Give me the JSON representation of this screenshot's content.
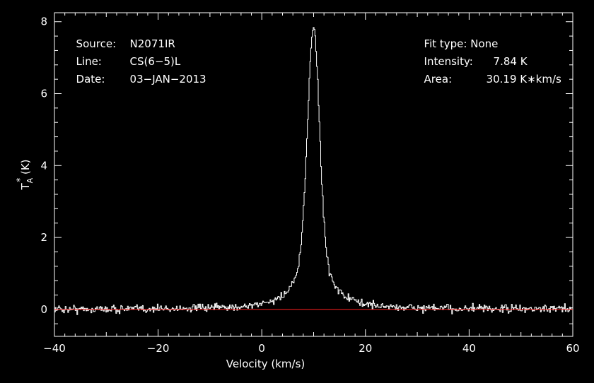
{
  "annotations": {
    "source_label": "Source:",
    "source_value": "N2071IR",
    "line_label": "Line:",
    "line_value": "CS(6−5)L",
    "date_label": "Date:",
    "date_value": "03−JAN−2013",
    "fit_label": "Fit type:",
    "fit_value": "None",
    "intensity_label": "Intensity:",
    "intensity_value": "7.84 K",
    "area_label": "Area:",
    "area_value": "30.19 K∗km/s"
  },
  "chart_data": {
    "type": "line",
    "xlabel": "Velocity (km/s)",
    "ylabel": "T",
    "ylabel_sub": "A",
    "ylabel_sup": "*",
    "ylabel_unit": "(K)",
    "xlim": [
      -40,
      60
    ],
    "ylim": [
      -0.75,
      8.25
    ],
    "x_ticks": [
      -40,
      -20,
      0,
      20,
      40,
      60
    ],
    "x_tick_labels": [
      "−40",
      "−20",
      "0",
      "20",
      "40",
      "60"
    ],
    "y_ticks": [
      0,
      2,
      4,
      6,
      8
    ],
    "y_tick_labels": [
      "0",
      "2",
      "4",
      "6",
      "8"
    ],
    "baseline": 0,
    "series": [
      {
        "style": "histogram",
        "color": "#ffffff",
        "line_profile": {
          "peak_velocity": 9.9,
          "peak_intensity": 7.84,
          "core_halfwidth": 1.1,
          "wing_amplitude": 2.2,
          "wing_halfwidth": 3.5,
          "noise_rms": 0.11
        }
      }
    ],
    "baseline_color": "#ff2020",
    "axis_color": "#ffffff",
    "grid": false
  }
}
